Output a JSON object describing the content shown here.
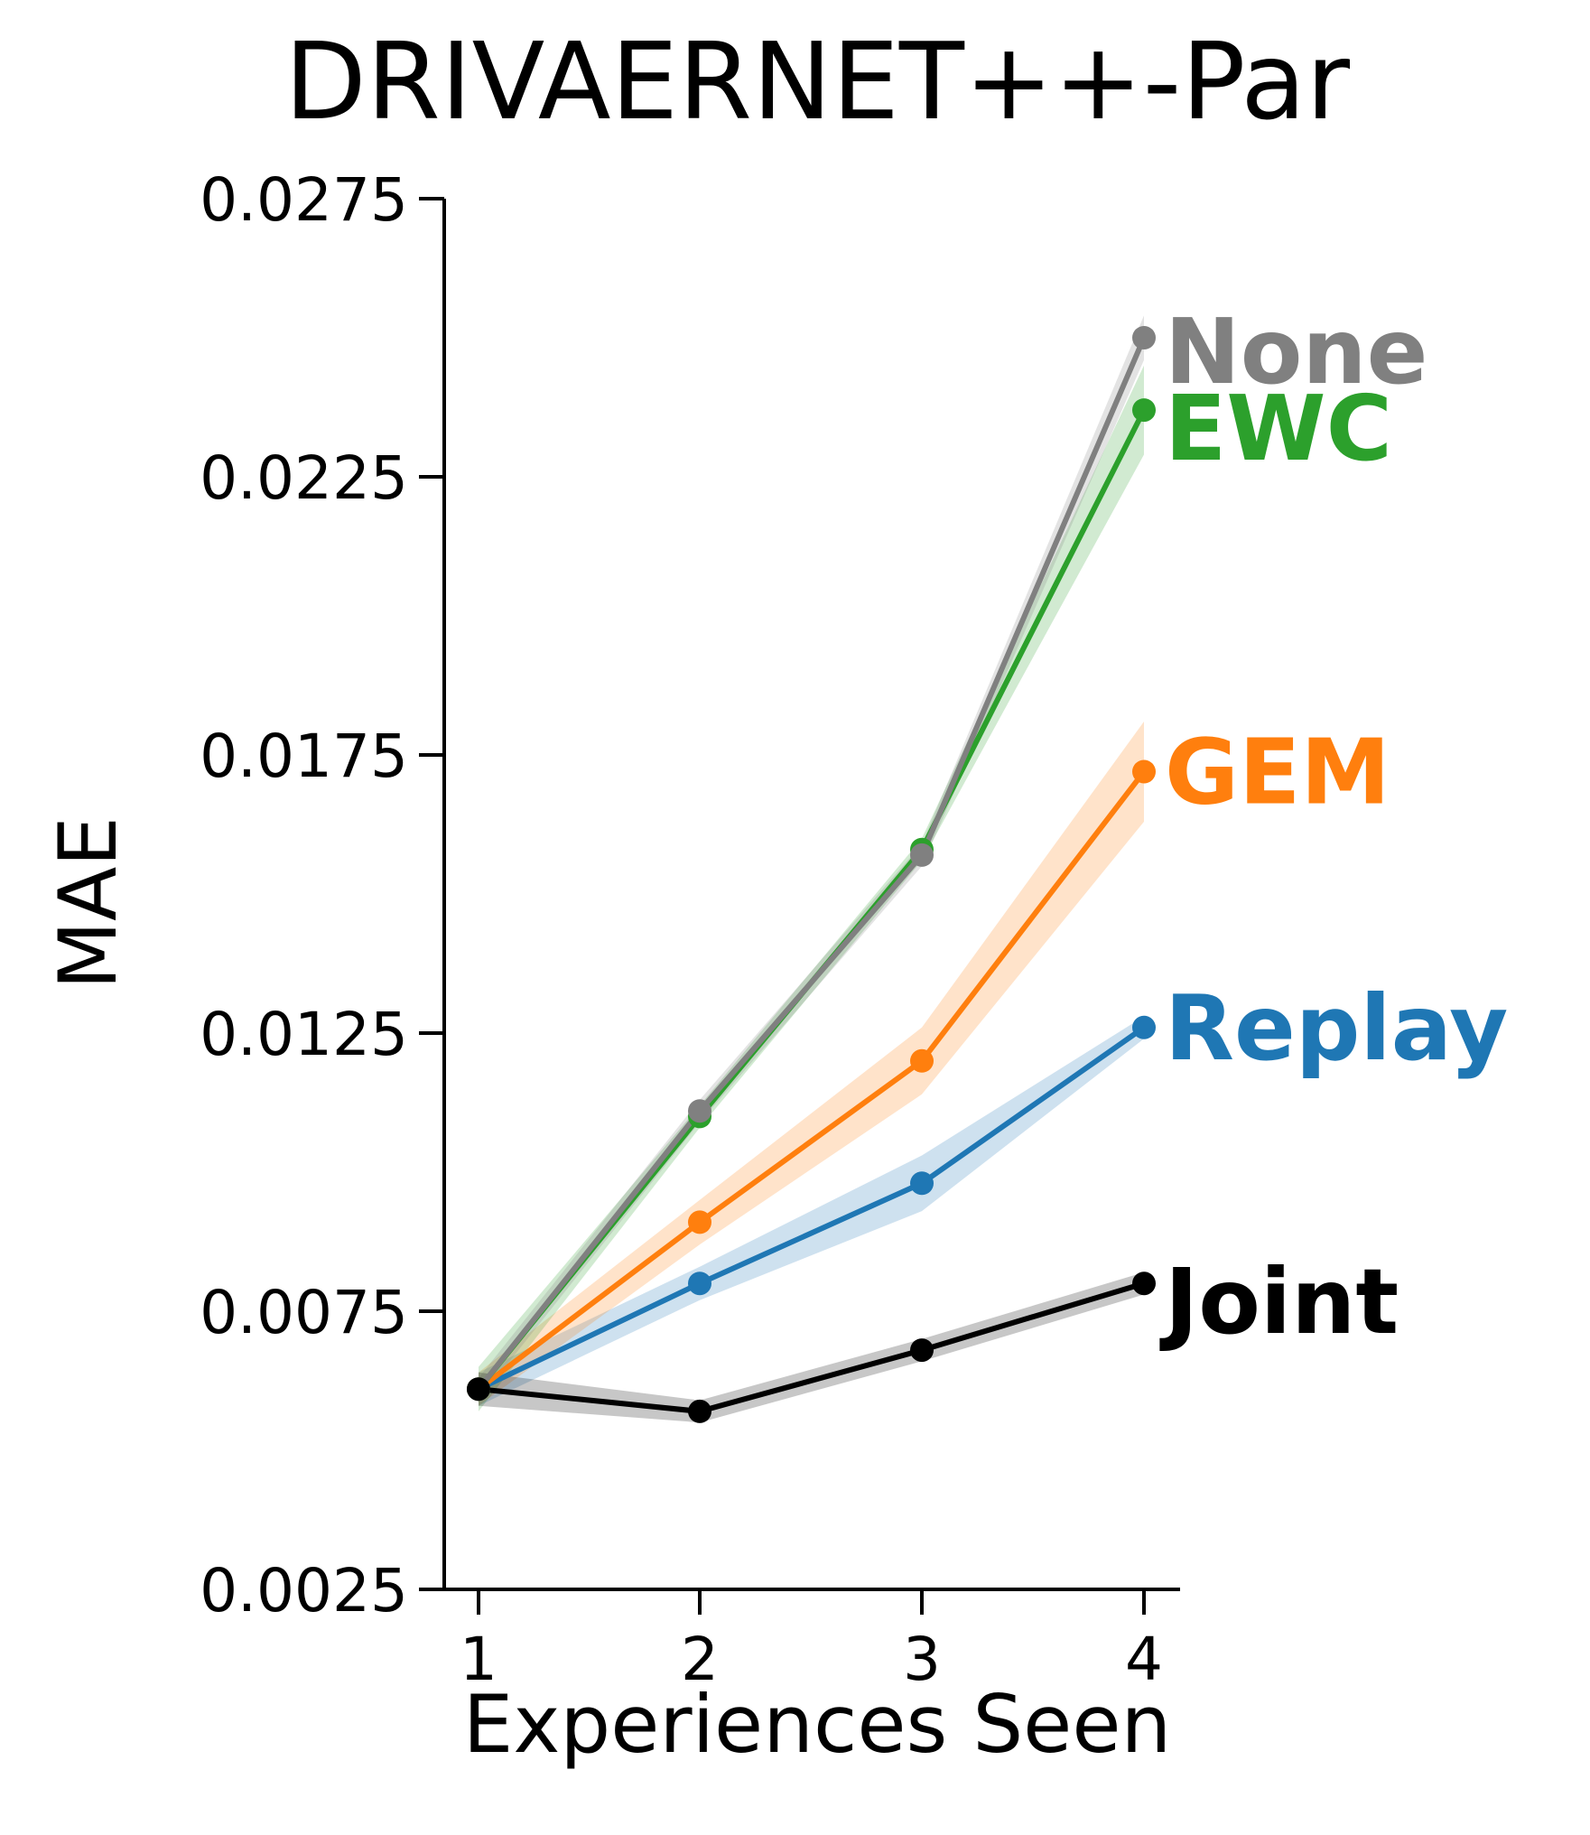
{
  "chart_data": {
    "type": "line",
    "title": "DRIVAERNET++-Par",
    "xlabel": "Experiences Seen",
    "ylabel": "MAE",
    "x": [
      1,
      2,
      3,
      4
    ],
    "xticks": [
      "1",
      "2",
      "3",
      "4"
    ],
    "ylim": [
      0.0025,
      0.0275
    ],
    "yticks": [
      "0.0025",
      "0.0075",
      "0.0125",
      "0.0175",
      "0.0225",
      "0.0275"
    ],
    "grid": false,
    "legend": "inline labels at line ends",
    "series": [
      {
        "name": "Replay",
        "color": "#1f77b4",
        "values": [
          0.0061,
          0.008,
          0.0098,
          0.0126
        ],
        "band": [
          0.0003,
          0.0003,
          0.0005,
          0.0002
        ]
      },
      {
        "name": "GEM",
        "color": "#ff7f0e",
        "values": [
          0.0061,
          0.0091,
          0.012,
          0.0172
        ],
        "band": [
          0.0003,
          0.0004,
          0.0006,
          0.0009
        ]
      },
      {
        "name": "EWC",
        "color": "#2ca02c",
        "values": [
          0.0061,
          0.011,
          0.0158,
          0.0237
        ],
        "band": [
          0.0004,
          0.0002,
          0.0002,
          0.0008
        ]
      },
      {
        "name": "None",
        "color": "#808080",
        "values": [
          0.0061,
          0.0111,
          0.0157,
          0.025
        ],
        "band": [
          0.0002,
          0.0002,
          0.0002,
          0.0004
        ]
      },
      {
        "name": "Joint",
        "color": "#000000",
        "values": [
          0.0061,
          0.0057,
          0.0068,
          0.008
        ],
        "band": [
          0.0003,
          0.0002,
          0.0002,
          0.0002
        ]
      }
    ]
  }
}
